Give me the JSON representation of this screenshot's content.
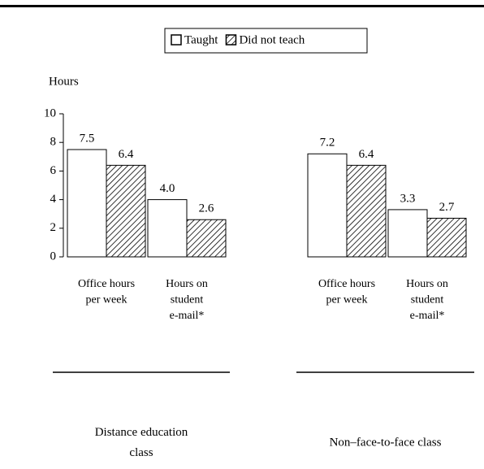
{
  "chart_data": {
    "type": "bar",
    "y_label": "Hours",
    "categories": [
      [
        "Office hours",
        "per week"
      ],
      [
        "Hours on",
        "student",
        "e-mail*"
      ],
      [
        "Office hours",
        "per week"
      ],
      [
        "Hours on",
        "student",
        "e-mail*"
      ]
    ],
    "groups": [
      [
        "Distance education",
        "class"
      ],
      [
        "Non–face-to-face class"
      ]
    ],
    "series": [
      {
        "name": "Taught",
        "color": "#ffffff",
        "hatch": false,
        "values": [
          7.5,
          4.0,
          7.2,
          3.3
        ],
        "value_labels": [
          "7.5",
          "4.0",
          "7.2",
          "3.3"
        ]
      },
      {
        "name": "Did not teach",
        "color": "#ffffff",
        "hatch": true,
        "values": [
          6.4,
          2.6,
          6.4,
          2.7
        ],
        "value_labels": [
          "6.4",
          "2.6",
          "6.4",
          "2.7"
        ]
      }
    ],
    "ylim": [
      0,
      10
    ],
    "yticks": [
      0,
      2,
      4,
      6,
      8,
      10
    ],
    "grid": false
  }
}
